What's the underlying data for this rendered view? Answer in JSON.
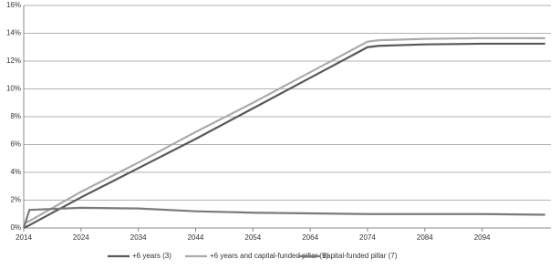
{
  "chart_data": {
    "type": "line",
    "x": [
      2014,
      2015,
      2024,
      2034,
      2044,
      2054,
      2064,
      2074,
      2076,
      2084,
      2094,
      2105
    ],
    "series": [
      {
        "name": "+6 years (3)",
        "color": "#585858",
        "values": [
          0,
          0.2,
          2.2,
          4.3,
          6.4,
          8.6,
          10.8,
          13.0,
          13.1,
          13.2,
          13.25,
          13.25
        ]
      },
      {
        "name": "+6 years and capital-funded pillar (9)",
        "color": "#ababab",
        "values": [
          0.3,
          0.5,
          2.6,
          4.7,
          6.9,
          9.0,
          11.2,
          13.4,
          13.5,
          13.6,
          13.65,
          13.65
        ]
      },
      {
        "name": "capital-funded pillar (7)",
        "color": "#7a7a7a",
        "values": [
          0,
          1.3,
          1.45,
          1.4,
          1.2,
          1.1,
          1.05,
          1.0,
          1.0,
          1.0,
          1.0,
          0.95
        ]
      }
    ],
    "xlim": [
      2014,
      2106
    ],
    "xticks": [
      2014,
      2024,
      2034,
      2044,
      2054,
      2064,
      2074,
      2084,
      2094
    ],
    "ylim": [
      0,
      16
    ],
    "yticks": [
      {
        "value": 0,
        "label": "0%"
      },
      {
        "value": 2,
        "label": "2%"
      },
      {
        "value": 4,
        "label": "4%"
      },
      {
        "value": 6,
        "label": "6%"
      },
      {
        "value": 8,
        "label": "8%"
      },
      {
        "value": 10,
        "label": "10%"
      },
      {
        "value": 12,
        "label": "12%"
      },
      {
        "value": 14,
        "label": "14%"
      },
      {
        "value": 16,
        "label": "16%"
      }
    ],
    "grid": true,
    "legend": "bottom"
  }
}
